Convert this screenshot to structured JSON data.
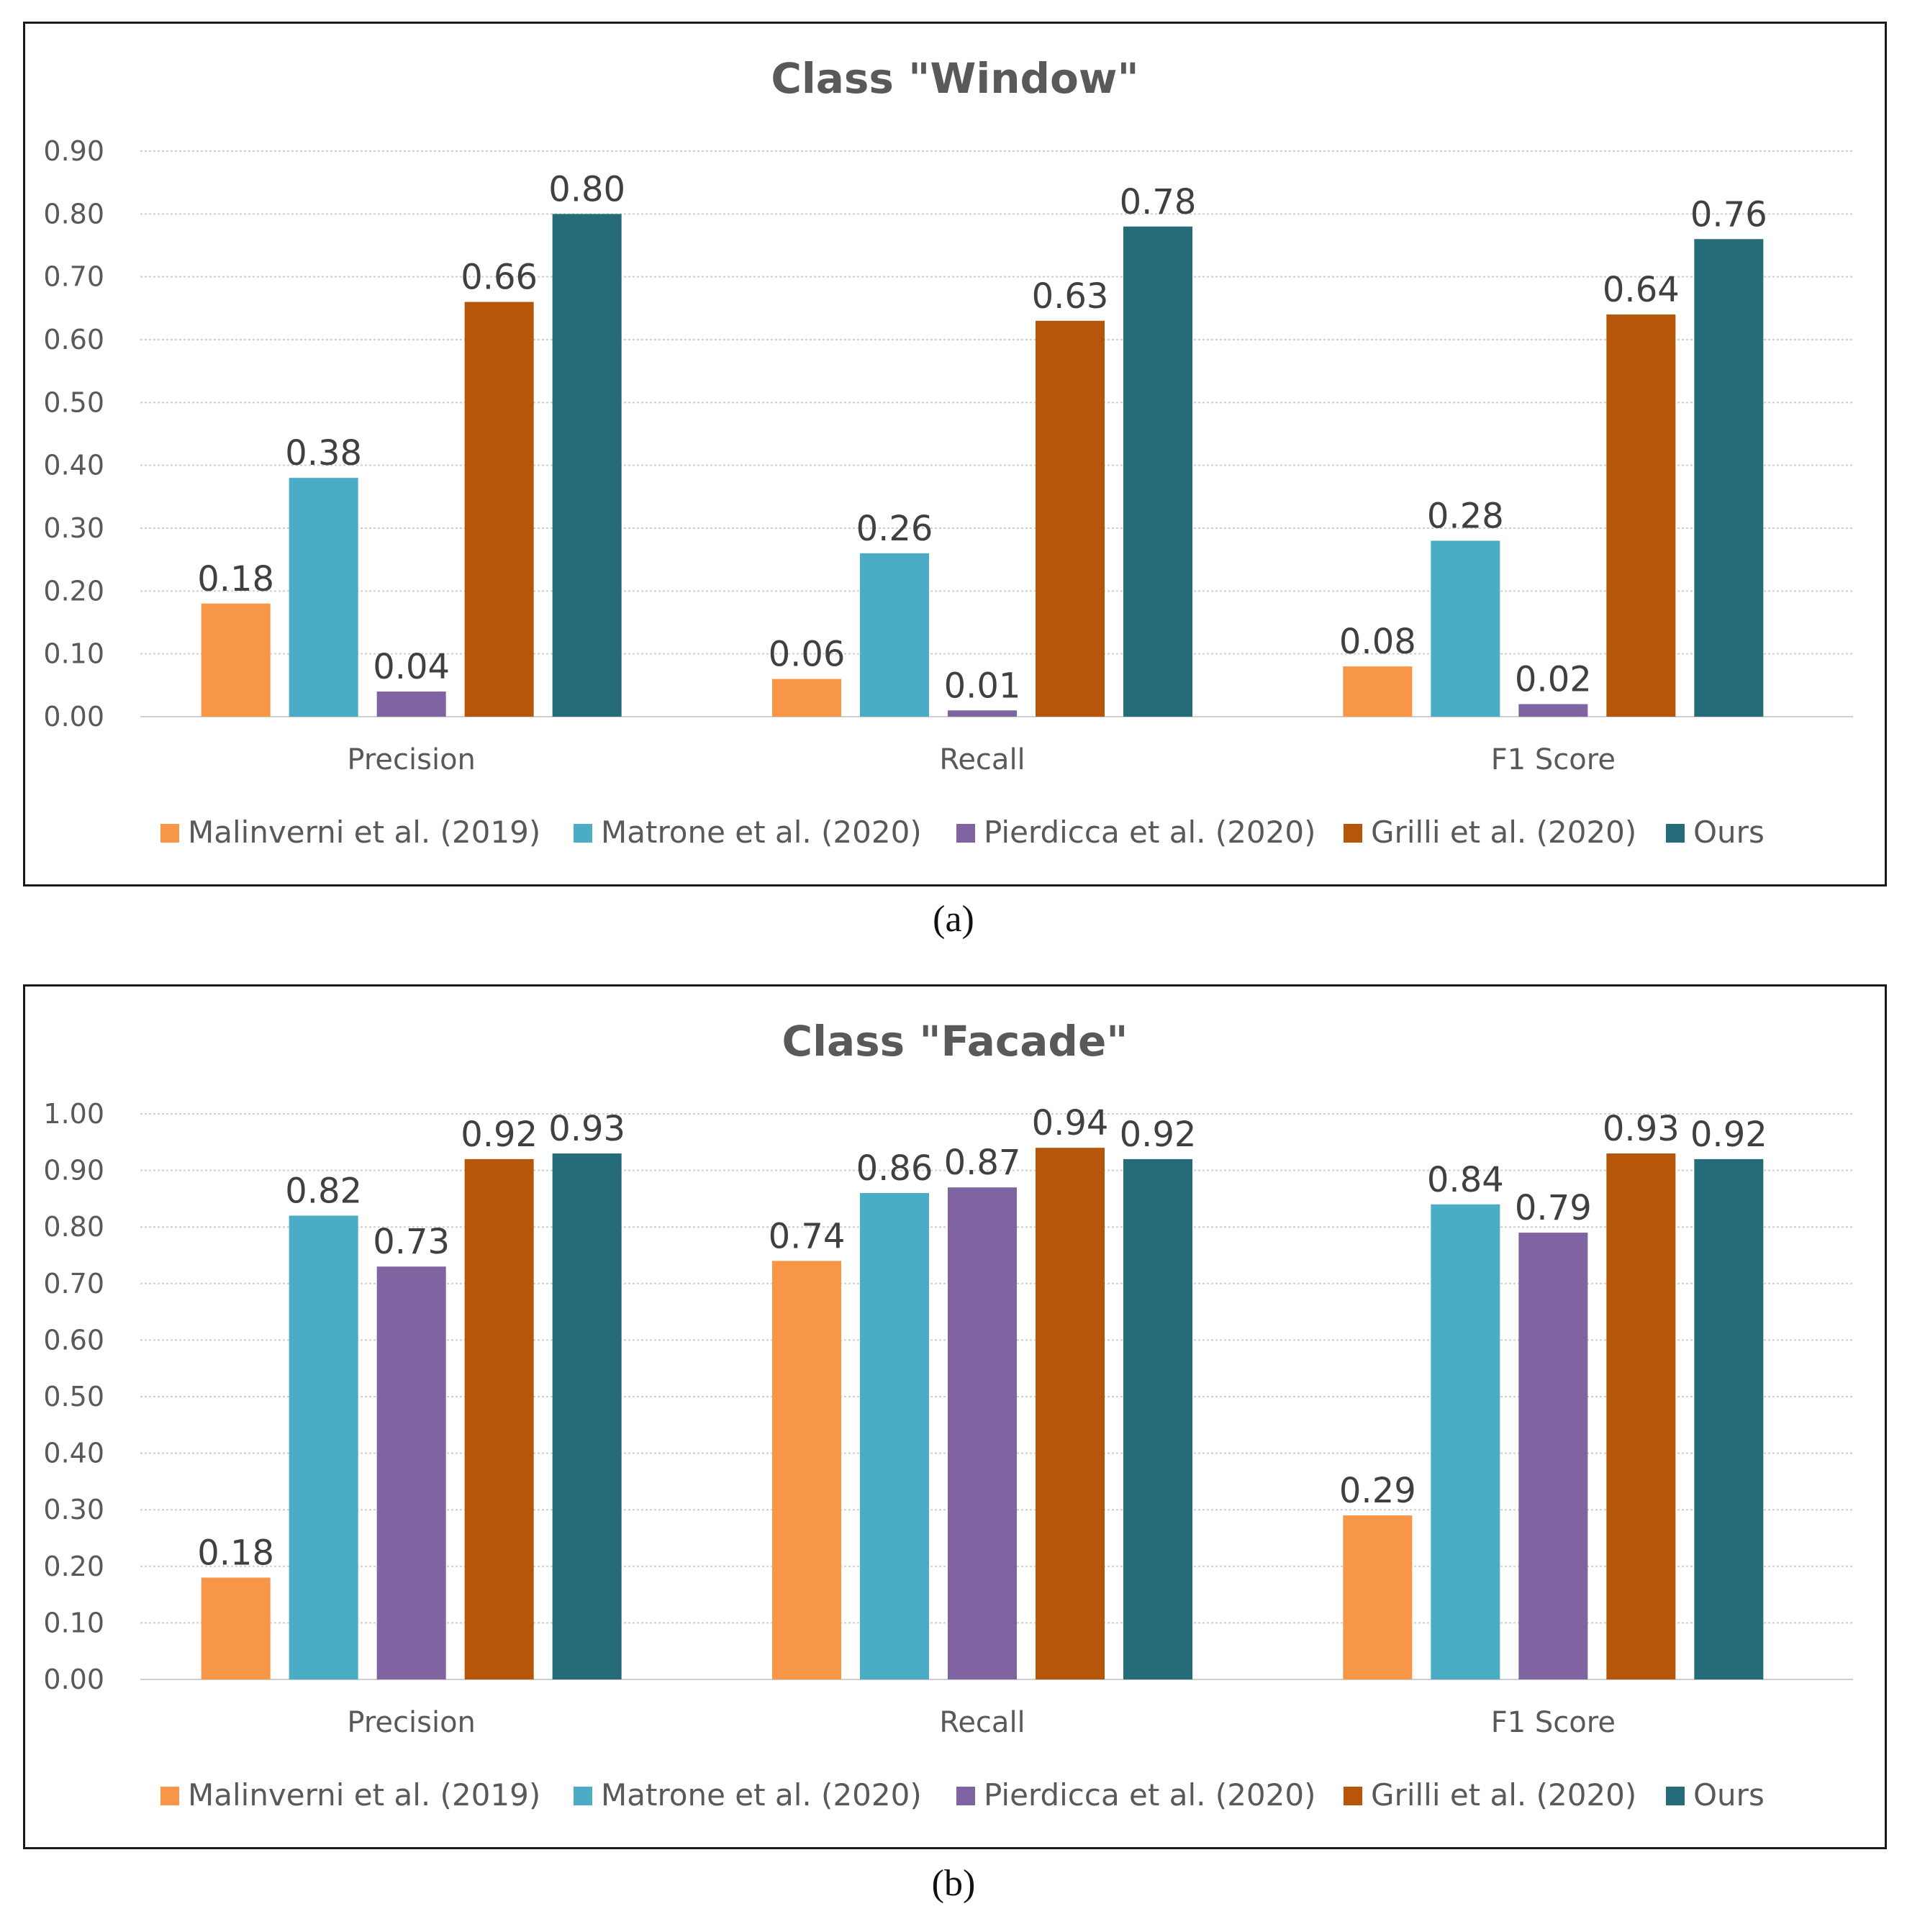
{
  "colors": {
    "series": [
      "#f79646",
      "#4bacc6",
      "#8064a2",
      "#b5560a",
      "#266b7a"
    ],
    "grid": "#cfcfcf",
    "axis_text": "#595959"
  },
  "captions": [
    "(a)",
    "(b)"
  ],
  "chart_data": [
    {
      "type": "bar",
      "title": "Class \"Window\"",
      "categories": [
        "Precision",
        "Recall",
        "F1 Score"
      ],
      "ylim": [
        0,
        0.9
      ],
      "yticks": [
        "0.00",
        "0.10",
        "0.20",
        "0.30",
        "0.40",
        "0.50",
        "0.60",
        "0.70",
        "0.80",
        "0.90"
      ],
      "grid": true,
      "legend": "bottom",
      "series": [
        {
          "name": "Malinverni et al. (2019)",
          "values": [
            0.18,
            0.06,
            0.08
          ],
          "labels": [
            "0.18",
            "0.06",
            "0.08"
          ]
        },
        {
          "name": "Matrone et al. (2020)",
          "values": [
            0.38,
            0.26,
            0.28
          ],
          "labels": [
            "0.38",
            "0.26",
            "0.28"
          ]
        },
        {
          "name": "Pierdicca et al. (2020)",
          "values": [
            0.04,
            0.01,
            0.02
          ],
          "labels": [
            "0.04",
            "0.01",
            "0.02"
          ]
        },
        {
          "name": "Grilli et al. (2020)",
          "values": [
            0.66,
            0.63,
            0.64
          ],
          "labels": [
            "0.66",
            "0.63",
            "0.64"
          ]
        },
        {
          "name": "Ours",
          "values": [
            0.8,
            0.78,
            0.76
          ],
          "labels": [
            "0.80",
            "0.78",
            "0.76"
          ]
        }
      ]
    },
    {
      "type": "bar",
      "title": "Class \"Facade\"",
      "categories": [
        "Precision",
        "Recall",
        "F1 Score"
      ],
      "ylim": [
        0,
        1.0
      ],
      "yticks": [
        "0.00",
        "0.10",
        "0.20",
        "0.30",
        "0.40",
        "0.50",
        "0.60",
        "0.70",
        "0.80",
        "0.90",
        "1.00"
      ],
      "grid": true,
      "legend": "bottom",
      "series": [
        {
          "name": "Malinverni et al. (2019)",
          "values": [
            0.18,
            0.74,
            0.29
          ],
          "labels": [
            "0.18",
            "0.74",
            "0.29"
          ]
        },
        {
          "name": "Matrone et al. (2020)",
          "values": [
            0.82,
            0.86,
            0.84
          ],
          "labels": [
            "0.82",
            "0.86",
            "0.84"
          ]
        },
        {
          "name": "Pierdicca et al. (2020)",
          "values": [
            0.73,
            0.87,
            0.79
          ],
          "labels": [
            "0.73",
            "0.87",
            "0.79"
          ]
        },
        {
          "name": "Grilli et al. (2020)",
          "values": [
            0.92,
            0.94,
            0.93
          ],
          "labels": [
            "0.92",
            "0.94",
            "0.93"
          ]
        },
        {
          "name": "Ours",
          "values": [
            0.93,
            0.92,
            0.92
          ],
          "labels": [
            "0.93",
            "0.92",
            "0.92"
          ]
        }
      ]
    }
  ]
}
